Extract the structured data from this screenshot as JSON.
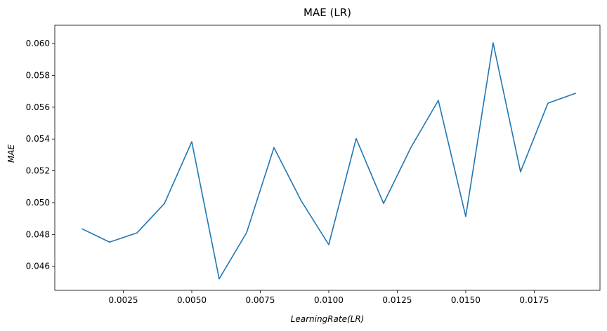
{
  "chart_data": {
    "type": "line",
    "title": "MAE (LR)",
    "xlabel": "LearningRate(LR)",
    "ylabel": "MAE",
    "xlim": [
      0.0,
      0.0199
    ],
    "ylim": [
      0.04449,
      0.06115
    ],
    "xticks": [
      0.0025,
      0.005,
      0.0075,
      0.01,
      0.0125,
      0.015,
      0.0175
    ],
    "xtick_labels": [
      "0.0025",
      "0.0050",
      "0.0075",
      "0.0100",
      "0.0125",
      "0.0150",
      "0.0175"
    ],
    "yticks": [
      0.046,
      0.048,
      0.05,
      0.052,
      0.054,
      0.056,
      0.058,
      0.06
    ],
    "ytick_labels": [
      "0.046",
      "0.048",
      "0.050",
      "0.052",
      "0.054",
      "0.056",
      "0.058",
      "0.060"
    ],
    "grid": false,
    "series": [
      {
        "color": "#1f77b4",
        "x": [
          0.001,
          0.002,
          0.003,
          0.004,
          0.005,
          0.006,
          0.007,
          0.008,
          0.009,
          0.01,
          0.011,
          0.012,
          0.013,
          0.014,
          0.015,
          0.016,
          0.017,
          0.018,
          0.019
        ],
        "y": [
          0.04835,
          0.04752,
          0.0481,
          0.04994,
          0.05383,
          0.04521,
          0.04811,
          0.05346,
          0.0501,
          0.04736,
          0.05403,
          0.04995,
          0.05347,
          0.05643,
          0.04913,
          0.06004,
          0.05194,
          0.05625,
          0.05687
        ]
      }
    ]
  }
}
